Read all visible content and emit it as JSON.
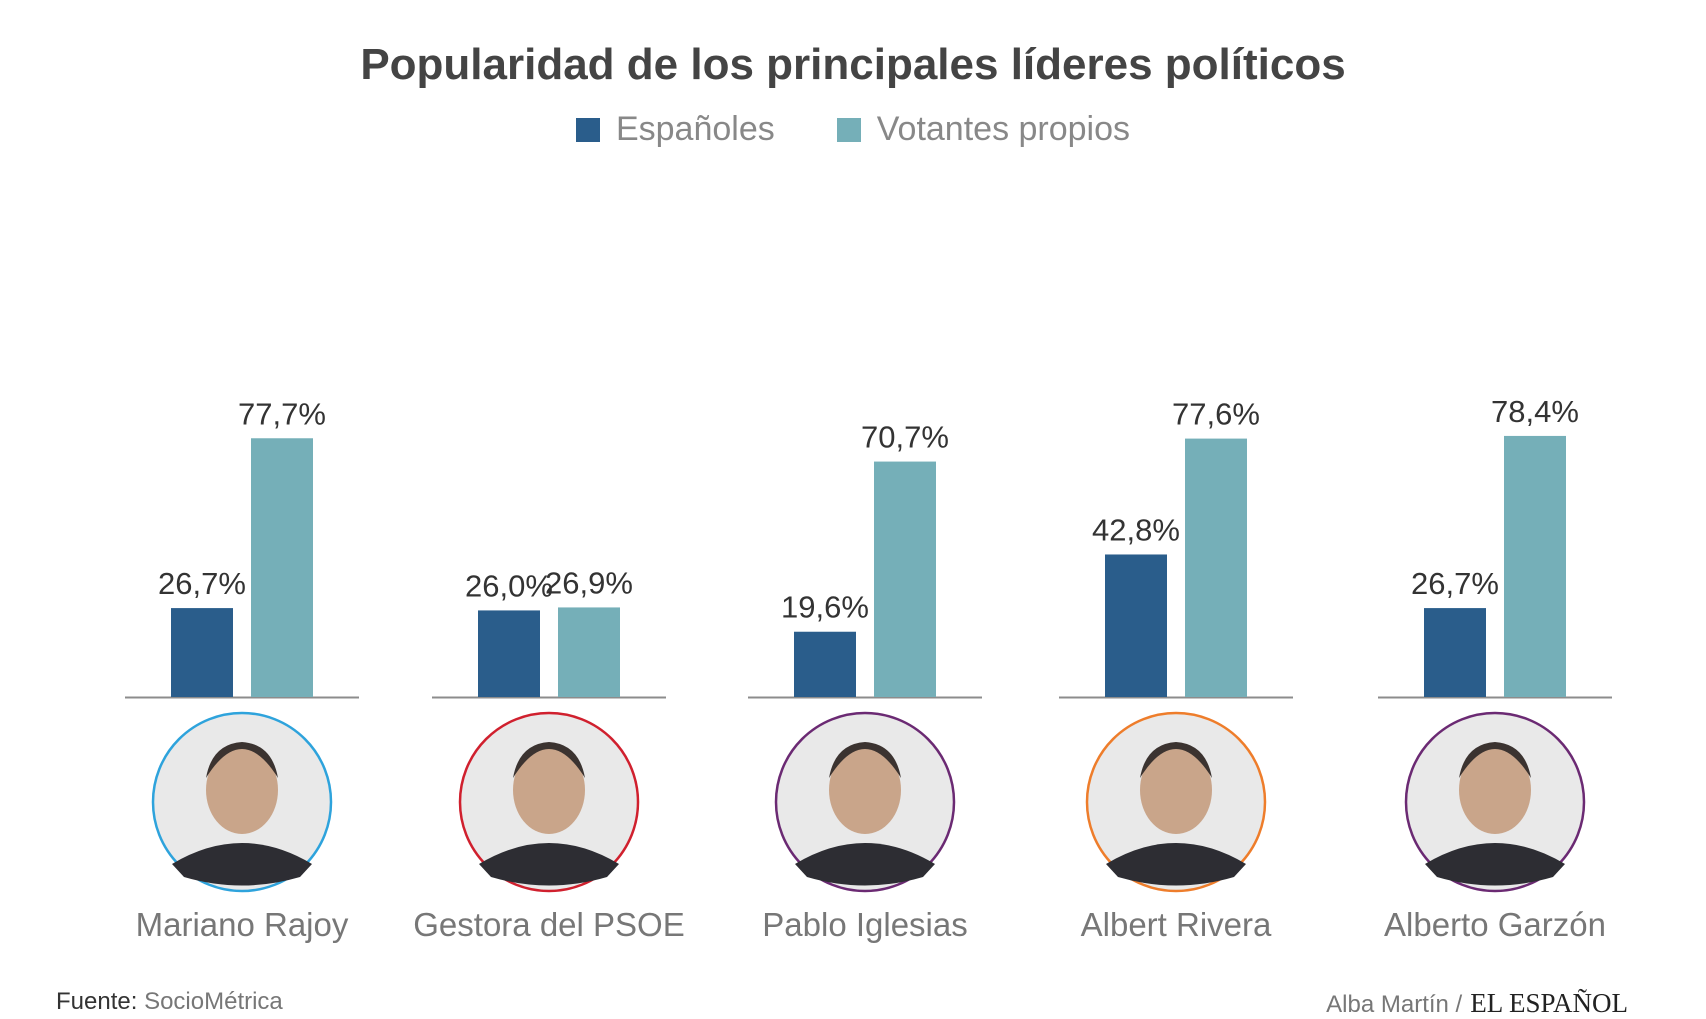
{
  "title": "Popularidad de los principales líderes políticos",
  "legend": [
    {
      "label": "Españoles",
      "color": "#2a5d8b"
    },
    {
      "label": "Votantes propios",
      "color": "#75afb8"
    }
  ],
  "chart_data": {
    "type": "bar",
    "title": "Popularidad de los principales líderes políticos",
    "categories": [
      "Mariano Rajoy",
      "Gestora del PSOE",
      "Pablo Iglesias",
      "Albert Rivera",
      "Alberto Garzón"
    ],
    "series": [
      {
        "name": "Españoles",
        "values": [
          26.7,
          26.0,
          19.6,
          42.8,
          26.7
        ],
        "labels": [
          "26,7%",
          "26,0%",
          "19,6%",
          "42,8%",
          "26,7%"
        ],
        "color": "#2a5d8b"
      },
      {
        "name": "Votantes propios",
        "values": [
          77.7,
          26.9,
          70.7,
          77.6,
          78.4
        ],
        "labels": [
          "77,7%",
          "26,9%",
          "70,7%",
          "77,6%",
          "78,4%"
        ],
        "color": "#75afb8"
      }
    ],
    "ylim": [
      0,
      80
    ],
    "xlabel": "",
    "ylabel": "",
    "grid": false,
    "legend_position": "top"
  },
  "leaders": [
    {
      "name": "Mariano Rajoy",
      "party_color": "#2ea3dc"
    },
    {
      "name": "Gestora del PSOE",
      "party_color": "#d0202e"
    },
    {
      "name": "Pablo Iglesias",
      "party_color": "#6b2a73"
    },
    {
      "name": "Albert Rivera",
      "party_color": "#ee7d2b"
    },
    {
      "name": "Alberto Garzón",
      "party_color": "#6b2a73"
    }
  ],
  "footer": {
    "source_label": "Fuente:",
    "source_name": "SocioMétrica",
    "author": "Alba Martín /",
    "brand": "EL ESPAÑOL"
  }
}
